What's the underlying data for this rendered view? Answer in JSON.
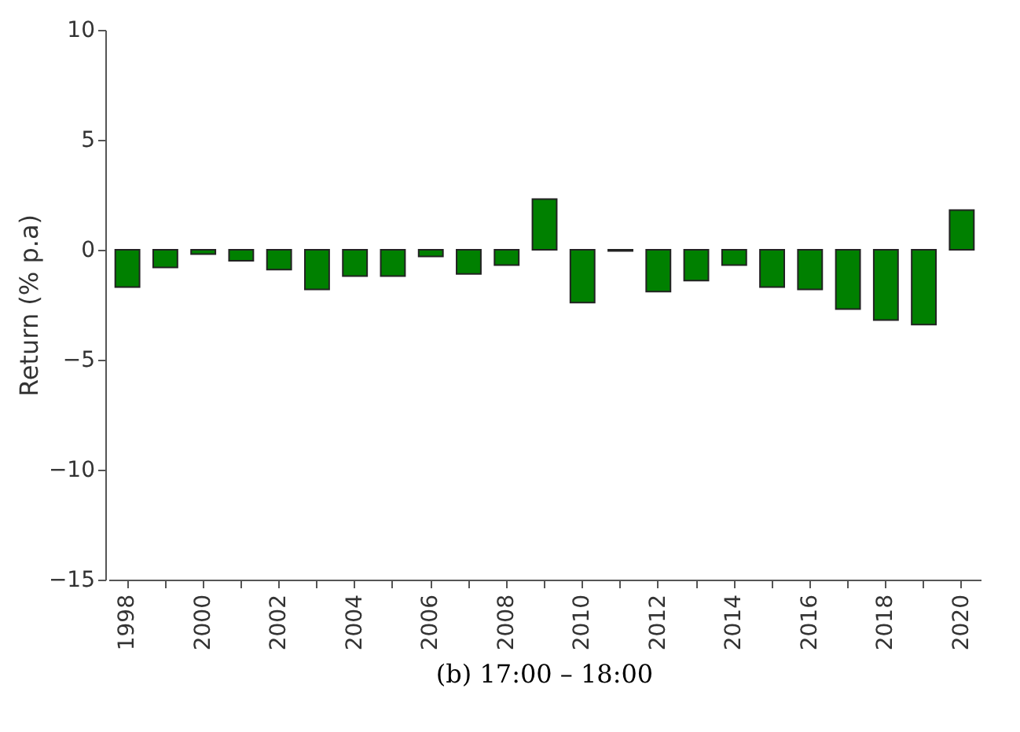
{
  "chart_data": {
    "type": "bar",
    "title": "(b) 17:00 – 18:00",
    "ylabel": "Return (% p.a)",
    "categories": [
      "1998",
      null,
      "2000",
      null,
      "2002",
      null,
      "2004",
      null,
      "2006",
      null,
      "2008",
      null,
      "2010",
      null,
      "2012",
      null,
      "2014",
      null,
      "2016",
      null,
      "2018",
      null,
      "2020"
    ],
    "values": [
      -1.7,
      -0.8,
      -0.2,
      -0.5,
      -0.9,
      -1.8,
      -1.2,
      -1.2,
      -0.3,
      -1.1,
      -0.7,
      2.3,
      -2.4,
      -0.05,
      -1.9,
      -1.4,
      -0.7,
      -1.7,
      -1.8,
      -2.7,
      -3.2,
      -3.4,
      1.8
    ],
    "color": "#008000",
    "ylim": [
      -15,
      10
    ],
    "yticks": [
      -15,
      -10,
      -5,
      0,
      5,
      10
    ],
    "grid": false
  }
}
